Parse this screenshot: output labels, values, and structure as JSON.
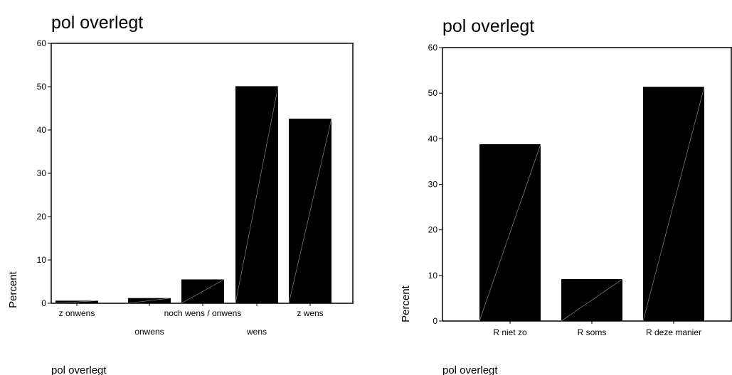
{
  "chart_data": [
    {
      "type": "bar",
      "title": "pol overlegt",
      "ylabel": "Percent",
      "xlabel": "pol overlegt",
      "ylim": [
        0,
        60
      ],
      "yticks": [
        "0",
        "10",
        "20",
        "30",
        "40",
        "50",
        "60"
      ],
      "categories": [
        "z onwens",
        "onwens",
        "noch wens / onwens",
        "wens",
        "z wens"
      ],
      "values": [
        0.6,
        1.2,
        5.5,
        50.1,
        42.6
      ],
      "label_rows": [
        0,
        1,
        0,
        1,
        0
      ],
      "bar_color": "#000000"
    },
    {
      "type": "bar",
      "title": "pol overlegt",
      "ylabel": "Percent",
      "xlabel": "pol overlegt",
      "ylim": [
        0,
        60
      ],
      "yticks": [
        "0",
        "10",
        "20",
        "30",
        "40",
        "50",
        "60"
      ],
      "categories": [
        "R niet zo",
        "R soms",
        "R deze manier"
      ],
      "values": [
        38.8,
        9.2,
        51.4
      ],
      "label_rows": [
        0,
        0,
        0
      ],
      "bar_color": "#000000"
    }
  ]
}
